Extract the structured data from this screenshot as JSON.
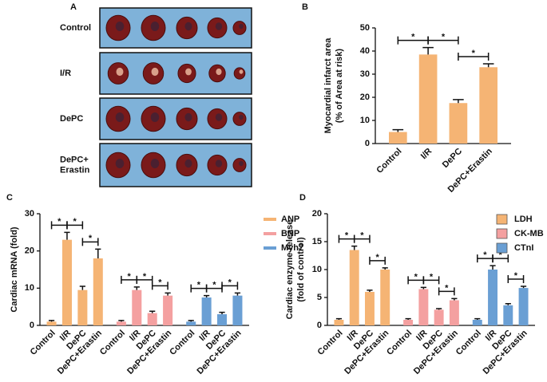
{
  "images": {
    "label": "A",
    "row_labels": [
      [
        "Control"
      ],
      [
        "I/R"
      ],
      [
        "DePC"
      ],
      [
        "DePC+",
        "Erastin"
      ]
    ]
  },
  "chart_data": [
    {
      "type": "bar",
      "label": "B",
      "ylabel": [
        "Myocardial infarct area",
        "(% of Area at risk)"
      ],
      "categories": [
        "Control",
        "I/R",
        "DePC",
        "DePC+Erastin"
      ],
      "values": [
        5,
        38.5,
        17.5,
        33
      ],
      "errors": [
        1,
        3,
        1.5,
        1.5
      ],
      "color": "#f5b474",
      "ylim": [
        0,
        50
      ],
      "yticks": [
        0,
        10,
        20,
        30,
        40,
        50
      ],
      "significance": [
        {
          "from": 0,
          "to": 1,
          "label": "*"
        },
        {
          "from": 1,
          "to": 2,
          "label": "*"
        },
        {
          "from": 2,
          "to": 3,
          "label": "*"
        }
      ]
    },
    {
      "type": "grouped_bar",
      "label": "C",
      "ylabel": [
        "Cardiac mRNA (fold)"
      ],
      "legend": "line",
      "categories": [
        "Control",
        "I/R",
        "DePC",
        "DePC+Erastin"
      ],
      "ylim": [
        0,
        30
      ],
      "yticks": [
        0,
        10,
        20,
        30
      ],
      "series": [
        {
          "name": "ANP",
          "color": "#f5b474",
          "values": [
            1,
            23,
            9.5,
            18
          ],
          "errors": [
            0.3,
            2,
            1,
            2.5
          ]
        },
        {
          "name": "BNP",
          "color": "#f4a0a0",
          "values": [
            1,
            9.5,
            3.3,
            8
          ],
          "errors": [
            0.3,
            0.8,
            0.5,
            0.7
          ]
        },
        {
          "name": "Myh7",
          "color": "#6a9fd4",
          "values": [
            1,
            7.5,
            3,
            8
          ],
          "errors": [
            0.3,
            0.5,
            0.5,
            0.7
          ]
        }
      ],
      "significance": [
        {
          "from": 0,
          "to": 1,
          "label": "*"
        },
        {
          "from": 1,
          "to": 2,
          "label": "*"
        },
        {
          "from": 2,
          "to": 3,
          "label": "*"
        }
      ]
    },
    {
      "type": "grouped_bar",
      "label": "D",
      "ylabel": [
        "Cardiac enzyme release",
        "(fold of control)"
      ],
      "legend": "box",
      "categories": [
        "Control",
        "I/R",
        "DePC",
        "DePC+Erastin"
      ],
      "ylim": [
        0,
        20
      ],
      "yticks": [
        0,
        5,
        10,
        15,
        20
      ],
      "series": [
        {
          "name": "LDH",
          "color": "#f5b474",
          "values": [
            1,
            13.5,
            6,
            10
          ],
          "errors": [
            0.2,
            0.7,
            0.3,
            0.3
          ]
        },
        {
          "name": "CK-MB",
          "color": "#f4a0a0",
          "values": [
            1,
            6.5,
            2.8,
            4.5
          ],
          "errors": [
            0.2,
            0.3,
            0.2,
            0.3
          ]
        },
        {
          "name": "CTnI",
          "color": "#6a9fd4",
          "values": [
            1,
            10,
            3.6,
            6.7
          ],
          "errors": [
            0.2,
            0.7,
            0.3,
            0.3
          ]
        }
      ],
      "significance": [
        {
          "from": 0,
          "to": 1,
          "label": "*"
        },
        {
          "from": 1,
          "to": 2,
          "label": "*"
        },
        {
          "from": 2,
          "to": 3,
          "label": "*"
        }
      ]
    }
  ]
}
